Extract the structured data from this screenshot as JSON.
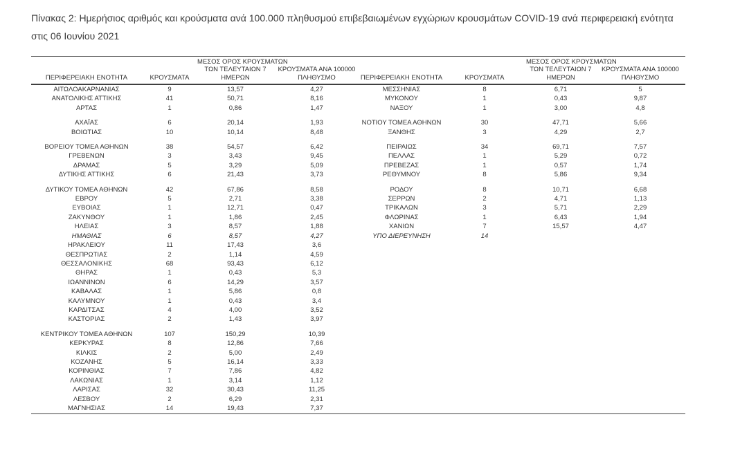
{
  "title": "Πίνακας 2:  Ημερήσιος αριθμός και κρούσματα ανά 100.000 πληθυσμού επιβεβαιωμένων εγχώριων κρουσμάτων COVID-19 ανά περιφερειακή ενότητα στις 06 Ιουνίου 2021",
  "table": {
    "headers": {
      "region": "ΠΕΡΙΦΕΡΕΙΑΚΗ ΕΝΟΤΗΤΑ",
      "cases": "ΚΡΟΥΣΜΑΤΑ",
      "avg7_lines": [
        "ΜΕΣΟΣ ΟΡΟΣ ΚΡΟΥΣΜΑΤΩΝ",
        "ΤΩΝ ΤΕΛΕΥΤΑΙΩΝ 7",
        "ΗΜΕΡΩΝ"
      ],
      "per100k_lines": [
        "ΚΡΟΥΣΜΑΤΑ ΑΝΑ 100000",
        "ΠΛΗΘΥΣΜΟ"
      ]
    },
    "left_rows": [
      [
        "ΑΙΤΩΛΟΑΚΑΡΝΑΝΙΑΣ",
        "9",
        "13,57",
        "4,27"
      ],
      [
        "ΑΝΑΤΟΛΙΚΗΣ ΑΤΤΙΚΗΣ",
        "41",
        "50,71",
        "8,16"
      ],
      [
        "ΑΡΤΑΣ",
        "1",
        "0,86",
        "1,47"
      ],
      {
        "spacer": true
      },
      [
        "ΑΧΑΪΑΣ",
        "6",
        "20,14",
        "1,93"
      ],
      [
        "ΒΟΙΩΤΙΑΣ",
        "10",
        "10,14",
        "8,48"
      ],
      {
        "spacer": true
      },
      [
        "ΒΟΡΕΙΟΥ ΤΟΜΕΑ ΑΘΗΝΩΝ",
        "38",
        "54,57",
        "6,42"
      ],
      [
        "ΓΡΕΒΕΝΩΝ",
        "3",
        "3,43",
        "9,45"
      ],
      [
        "ΔΡΑΜΑΣ",
        "5",
        "3,29",
        "5,09"
      ],
      [
        "ΔΥΤΙΚΗΣ ΑΤΤΙΚΗΣ",
        "6",
        "21,43",
        "3,73"
      ],
      {
        "spacer": true
      },
      [
        "ΔΥΤΙΚΟΥ ΤΟΜΕΑ ΑΘΗΝΩΝ",
        "42",
        "67,86",
        "8,58"
      ],
      [
        "ΕΒΡΟΥ",
        "5",
        "2,71",
        "3,38"
      ],
      [
        "ΕΥΒΟΙΑΣ",
        "1",
        "12,71",
        "0,47"
      ],
      [
        "ΖΑΚΥΝΘΟΥ",
        "1",
        "1,86",
        "2,45"
      ],
      [
        "ΗΛΕΙΑΣ",
        "3",
        "8,57",
        "1,88"
      ],
      [
        "ΗΜΑΘΙΑΣ",
        "6",
        "8,57",
        "4,27"
      ],
      [
        "ΗΡΑΚΛΕΙΟΥ",
        "11",
        "17,43",
        "3,6"
      ],
      [
        "ΘΕΣΠΡΩΤΙΑΣ",
        "2",
        "1,14",
        "4,59"
      ],
      [
        "ΘΕΣΣΑΛΟΝΙΚΗΣ",
        "68",
        "93,43",
        "6,12"
      ],
      [
        "ΘΗΡΑΣ",
        "1",
        "0,43",
        "5,3"
      ],
      [
        "ΙΩΑΝΝΙΝΩΝ",
        "6",
        "14,29",
        "3,57"
      ],
      [
        "ΚΑΒΑΛΑΣ",
        "1",
        "5,86",
        "0,8"
      ],
      [
        "ΚΑΛΥΜΝΟΥ",
        "1",
        "0,43",
        "3,4"
      ],
      [
        "ΚΑΡΔΙΤΣΑΣ",
        "4",
        "4,00",
        "3,52"
      ],
      [
        "ΚΑΣΤΟΡΙΑΣ",
        "2",
        "1,43",
        "3,97"
      ],
      {
        "spacer": true
      },
      [
        "ΚΕΝΤΡΙΚΟΥ ΤΟΜΕΑ ΑΘΗΝΩΝ",
        "107",
        "150,29",
        "10,39"
      ],
      [
        "ΚΕΡΚΥΡΑΣ",
        "8",
        "12,86",
        "7,66"
      ],
      [
        "ΚΙΛΚΙΣ",
        "2",
        "5,00",
        "2,49"
      ],
      [
        "ΚΟΖΑΝΗΣ",
        "5",
        "16,14",
        "3,33"
      ],
      [
        "ΚΟΡΙΝΘΙΑΣ",
        "7",
        "7,86",
        "4,82"
      ],
      [
        "ΛΑΚΩΝΙΑΣ",
        "1",
        "3,14",
        "1,12"
      ],
      [
        "ΛΑΡΙΣΑΣ",
        "32",
        "30,43",
        "11,25"
      ],
      [
        "ΛΕΣΒΟΥ",
        "2",
        "6,29",
        "2,31"
      ],
      [
        "ΜΑΓΝΗΣΙΑΣ",
        "14",
        "19,43",
        "7,37"
      ]
    ],
    "right_rows": [
      [
        "ΜΕΣΣΗΝΙΑΣ",
        "8",
        "6,71",
        "5"
      ],
      [
        "ΜΥΚΟΝΟΥ",
        "1",
        "0,43",
        "9,87"
      ],
      [
        "ΝΑΞΟΥ",
        "1",
        "3,00",
        "4,8"
      ],
      {
        "spacer": true
      },
      [
        "ΝΟΤΙΟΥ ΤΟΜΕΑ ΑΘΗΝΩΝ",
        "30",
        "47,71",
        "5,66"
      ],
      [
        "ΞΑΝΘΗΣ",
        "3",
        "4,29",
        "2,7"
      ],
      {
        "spacer": true
      },
      [
        "ΠΕΙΡΑΙΩΣ",
        "34",
        "69,71",
        "7,57"
      ],
      [
        "ΠΕΛΛΑΣ",
        "1",
        "5,29",
        "0,72"
      ],
      [
        "ΠΡΕΒΕΖΑΣ",
        "1",
        "0,57",
        "1,74"
      ],
      [
        "ΡΕΘΥΜΝΟΥ",
        "8",
        "5,86",
        "9,34"
      ],
      {
        "spacer": true
      },
      [
        "ΡΟΔΟΥ",
        "8",
        "10,71",
        "6,68"
      ],
      [
        "ΣΕΡΡΩΝ",
        "2",
        "4,71",
        "1,13"
      ],
      [
        "ΤΡΙΚΑΛΩΝ",
        "3",
        "5,71",
        "2,29"
      ],
      [
        "ΦΛΩΡΙΝΑΣ",
        "1",
        "6,43",
        "1,94"
      ],
      [
        "ΧΑΝΙΩΝ",
        "7",
        "15,57",
        "4,47"
      ],
      {
        "cells": [
          "ΥΠΟ ΔΙΕΡΕΥΝΗΣΗ",
          "14",
          "",
          ""
        ],
        "italic": true
      }
    ]
  }
}
